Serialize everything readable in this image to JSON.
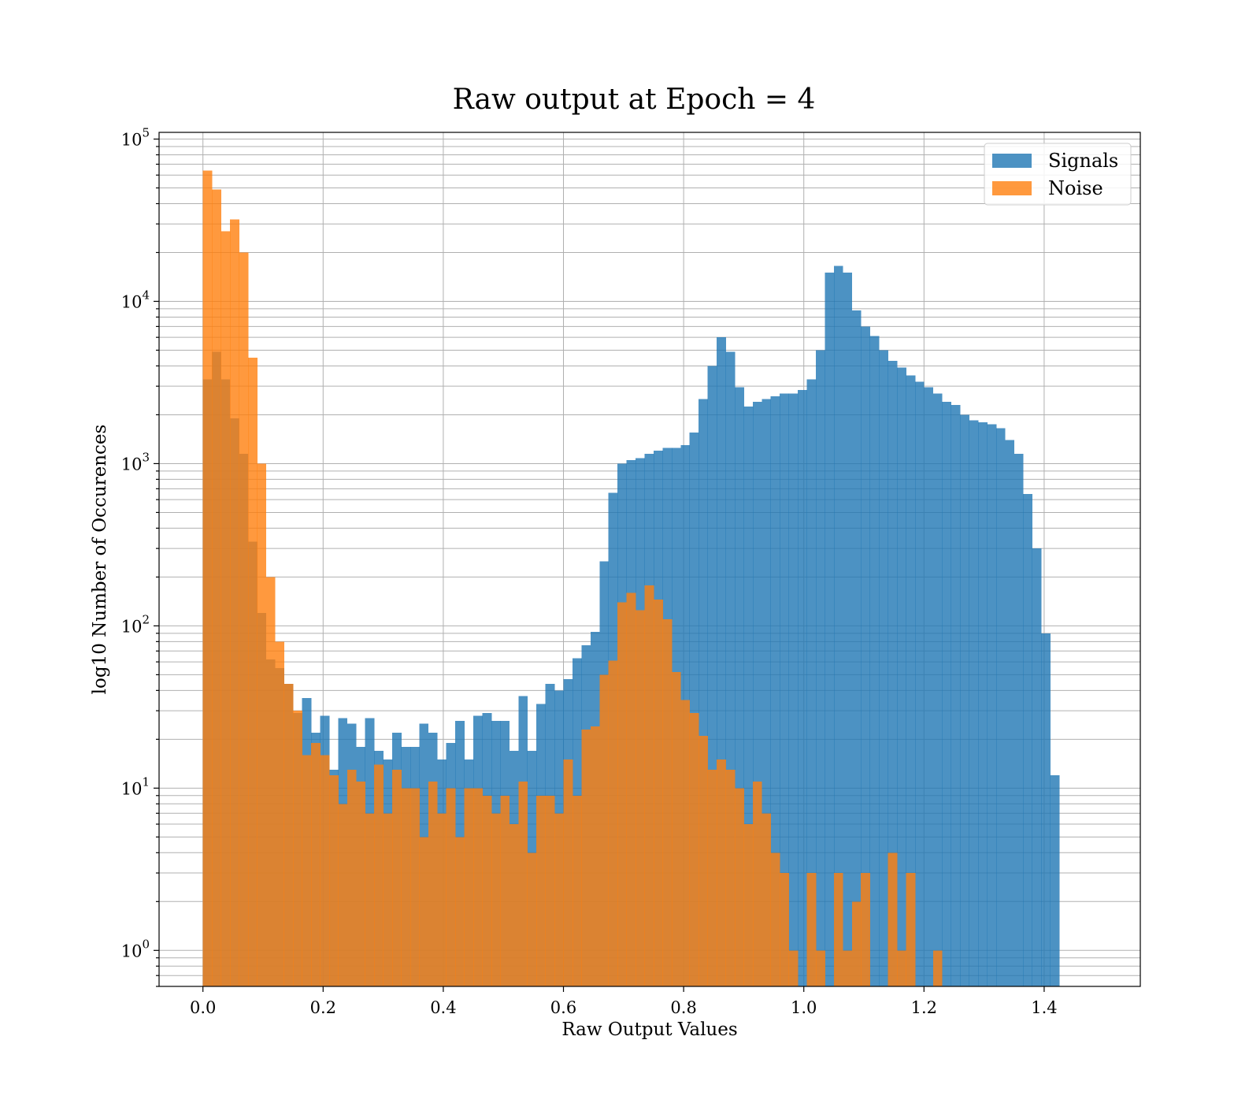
{
  "chart_data": {
    "type": "bar",
    "subtype": "histogram",
    "title": "Raw output at Epoch = 4",
    "xlabel": "Raw Output Values",
    "ylabel": "log10 Number of Occurences",
    "yscale": "log",
    "xlim": [
      -0.073,
      1.56
    ],
    "ylim": [
      0.6,
      110000
    ],
    "x_ticks": [
      "0.0",
      "0.2",
      "0.4",
      "0.6",
      "0.8",
      "1.0",
      "1.2",
      "1.4"
    ],
    "y_ticks": [
      {
        "base": "10",
        "exp": "0"
      },
      {
        "base": "10",
        "exp": "1"
      },
      {
        "base": "10",
        "exp": "2"
      },
      {
        "base": "10",
        "exp": "3"
      },
      {
        "base": "10",
        "exp": "4"
      },
      {
        "base": "10",
        "exp": "5"
      }
    ],
    "grid": true,
    "legend": "top-right",
    "bin_start": 0.0,
    "bin_width": 0.015,
    "series": [
      {
        "name": "Signals",
        "color": "#1f77b4",
        "alpha": 0.8,
        "values": [
          3300,
          4900,
          3300,
          1900,
          1150,
          330,
          120,
          62,
          55,
          44,
          29,
          36,
          22,
          28,
          13,
          27,
          25,
          18,
          27,
          17,
          15,
          22,
          18,
          18,
          25,
          22,
          15,
          19,
          26,
          15,
          28,
          29,
          26,
          26,
          17,
          37,
          17,
          33,
          44,
          40,
          47,
          63,
          76,
          92,
          250,
          660,
          1000,
          1050,
          1080,
          1150,
          1200,
          1250,
          1250,
          1300,
          1550,
          2500,
          4000,
          6000,
          4900,
          2950,
          2250,
          2400,
          2500,
          2600,
          2700,
          2700,
          2850,
          3300,
          5000,
          15000,
          16500,
          15000,
          8800,
          7000,
          6100,
          5000,
          4300,
          3900,
          3500,
          3200,
          2950,
          2700,
          2400,
          2300,
          2000,
          1850,
          1800,
          1750,
          1650,
          1400,
          1150,
          650,
          300,
          90,
          12
        ]
      },
      {
        "name": "Noise",
        "color": "#ff7f0e",
        "alpha": 0.8,
        "values": [
          64000,
          49000,
          27000,
          32000,
          20000,
          4500,
          1000,
          200,
          80,
          44,
          30,
          16,
          19,
          16,
          12,
          8,
          13,
          11,
          7,
          14,
          7,
          13,
          10,
          10,
          5,
          11,
          7,
          10,
          5,
          10,
          10,
          9,
          7,
          9,
          6,
          11,
          4,
          9,
          9,
          7,
          15,
          9,
          23,
          24,
          50,
          61,
          140,
          160,
          125,
          178,
          145,
          110,
          52,
          35,
          29,
          21,
          13,
          15,
          13,
          10,
          6,
          11,
          7,
          4,
          3,
          1,
          0,
          3,
          1,
          0,
          3,
          1,
          2,
          3,
          0.5,
          0.5,
          4,
          1,
          3,
          0.5,
          0.5,
          1
        ]
      }
    ]
  }
}
